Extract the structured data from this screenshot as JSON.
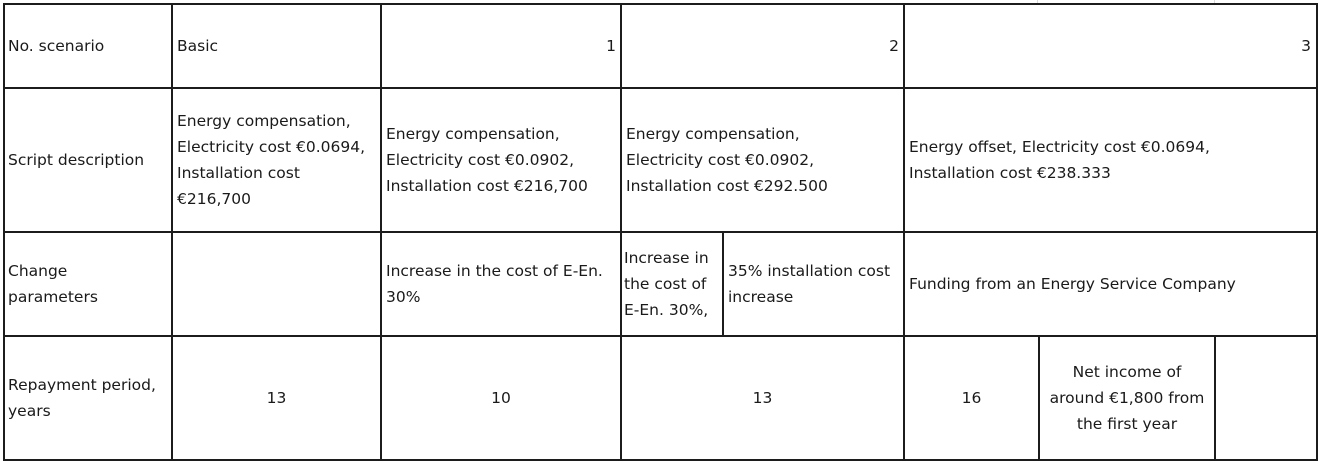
{
  "table": {
    "row1": {
      "label": "No. scenario",
      "basic": "Basic",
      "s1": "1",
      "s2": "2",
      "s3": "3"
    },
    "row2": {
      "label": "Script description",
      "basic": "Energy compensation, Electricity cost €0.0694, Installation cost €216,700",
      "s1": "Energy compensation, Electricity cost €0.0902, Installation cost €216,700",
      "s2": "Energy compensation, Electricity cost €0.0902, Installation cost €292.500",
      "s3": "Energy offset, Electricity cost €0.0694, Installation cost €238.333"
    },
    "row3": {
      "label": "Change parameters",
      "basic": "",
      "s1": "Increase in the cost of E-En. 30%",
      "s2a": "Increase in the cost of E-En. 30%,",
      "s2b": "35% installation cost increase",
      "s3": "Funding from an Energy Service Company"
    },
    "row4": {
      "label": "Repayment period, years",
      "basic": "13",
      "s1": "10",
      "s2": "13",
      "s3a": "16",
      "s3b": "Net income of around €1,800 from the first year",
      "s3c": ""
    }
  }
}
